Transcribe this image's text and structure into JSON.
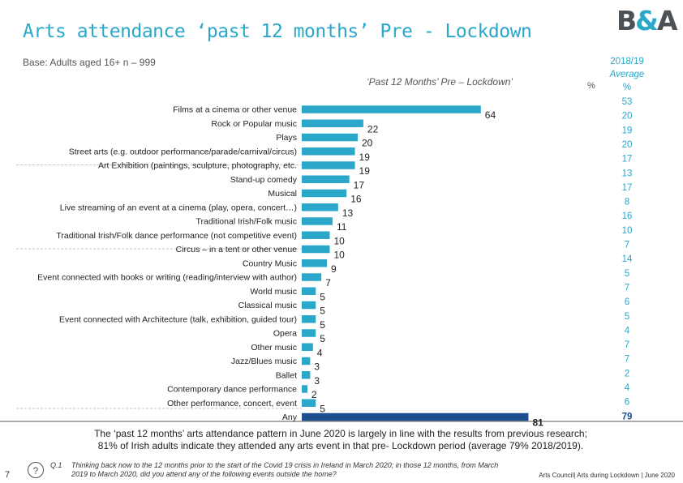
{
  "header": {
    "title": "Arts attendance ‘past 12 months’ Pre - Lockdown",
    "logo_main": "B",
    "logo_amp": "&",
    "logo_end": "A",
    "base": "Base: Adults aged 16+ n – 999",
    "subtitle": "‘Past 12 Months’ Pre – Lockdown’",
    "pct_label": "%",
    "avg_line1": "2018/19",
    "avg_line2": "Average",
    "avg_line3": "%"
  },
  "colors": {
    "bar": "#2aa7c9",
    "bar_highlight": "#1e4f8c",
    "avg_text": "#2aa7c9",
    "avg_text_highlight": "#1e4f8c"
  },
  "chart_data": {
    "type": "bar",
    "orientation": "horizontal",
    "title": "‘Past 12 Months’ Pre – Lockdown’",
    "xlim": [
      0,
      100
    ],
    "categories": [
      "Films at a cinema or other venue",
      "Rock or Popular music",
      "Plays",
      "Street arts (e.g. outdoor performance/parade/carnival/circus)",
      "Art Exhibition (paintings, sculpture, photography, etc.",
      "Stand-up comedy",
      "Musical",
      "Live streaming of an event at a cinema (play, opera, concert…)",
      "Traditional Irish/Folk music",
      "Traditional Irish/Folk dance performance (not competitive event)",
      "Circus – in a tent or other venue",
      "Country Music",
      "Event connected with books or writing (reading/interview with author)",
      "World music",
      "Classical music",
      "Event connected with Architecture (talk, exhibition, guided tour)",
      "Opera",
      "Other music",
      "Jazz/Blues music",
      "Ballet",
      "Contemporary dance performance",
      "Other performance, concert, event",
      "Any"
    ],
    "series": [
      {
        "name": "Past 12 months pre-lockdown",
        "values": [
          64,
          22,
          20,
          19,
          19,
          17,
          16,
          13,
          11,
          10,
          10,
          9,
          7,
          5,
          5,
          5,
          5,
          4,
          3,
          3,
          2,
          5,
          81
        ]
      },
      {
        "name": "2018/19 Average",
        "values": [
          53,
          20,
          19,
          20,
          17,
          13,
          17,
          8,
          16,
          10,
          7,
          14,
          5,
          7,
          6,
          5,
          4,
          7,
          7,
          2,
          4,
          6,
          79
        ]
      }
    ]
  },
  "footer": {
    "note_line1": "The ‘past 12 months’ arts attendance pattern in June 2020 is largely in line with the results from previous research;",
    "note_line2": "81% of Irish adults indicate they attended any arts event in that pre- Lockdown period (average 79% 2018/2019).",
    "page_number": "7",
    "q_icon": "?",
    "q_label": "Q.1",
    "q_text": "Thinking back now to the 12 months prior to the start of the Covid 19 crisis in Ireland in March 2020; in those 12 months, from March 2019 to March 2020, did you attend any of  the following events outside the home?",
    "credit": "Arts Council| Arts during Lockdown | June 2020"
  }
}
